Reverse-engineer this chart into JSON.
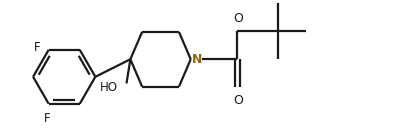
{
  "bg_color": "#ffffff",
  "bond_color": "#1a1a1a",
  "N_color": "#8B6914",
  "F_color": "#1a1a1a",
  "O_color": "#1a1a1a",
  "HO_color": "#1a1a1a",
  "lw": 1.6,
  "figsize": [
    3.97,
    1.38
  ],
  "dpi": 100,
  "xlim": [
    0.0,
    10.2
  ],
  "ylim": [
    0.3,
    3.8
  ]
}
